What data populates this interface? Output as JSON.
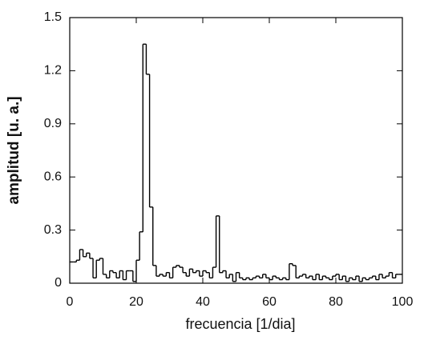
{
  "chart_data": {
    "type": "line",
    "drawstyle": "steps-post",
    "color": "#000000",
    "xlabel": "frecuencia  [1/dia]",
    "ylabel": "amplitud [u. a.]",
    "x": [
      0,
      1,
      2,
      3,
      4,
      5,
      6,
      7,
      8,
      9,
      10,
      11,
      12,
      13,
      14,
      15,
      16,
      17,
      18,
      19,
      20,
      21,
      22,
      23,
      24,
      25,
      26,
      27,
      28,
      29,
      30,
      31,
      32,
      33,
      34,
      35,
      36,
      37,
      38,
      39,
      40,
      41,
      42,
      43,
      44,
      45,
      46,
      47,
      48,
      49,
      50,
      51,
      52,
      53,
      54,
      55,
      56,
      57,
      58,
      59,
      60,
      61,
      62,
      63,
      64,
      65,
      66,
      67,
      68,
      69,
      70,
      71,
      72,
      73,
      74,
      75,
      76,
      77,
      78,
      79,
      80,
      81,
      82,
      83,
      84,
      85,
      86,
      87,
      88,
      89,
      90,
      91,
      92,
      93,
      94,
      95,
      96,
      97,
      98,
      99
    ],
    "values": [
      0.12,
      0.12,
      0.13,
      0.19,
      0.15,
      0.17,
      0.14,
      0.03,
      0.13,
      0.14,
      0.05,
      0.03,
      0.07,
      0.06,
      0.03,
      0.07,
      0.02,
      0.07,
      0.07,
      0.01,
      0.13,
      0.29,
      1.35,
      1.18,
      0.43,
      0.1,
      0.04,
      0.05,
      0.04,
      0.06,
      0.03,
      0.09,
      0.1,
      0.09,
      0.06,
      0.04,
      0.08,
      0.06,
      0.07,
      0.04,
      0.07,
      0.06,
      0.03,
      0.09,
      0.38,
      0.06,
      0.07,
      0.03,
      0.05,
      0.01,
      0.06,
      0.03,
      0.02,
      0.03,
      0.02,
      0.03,
      0.04,
      0.03,
      0.05,
      0.03,
      0.02,
      0.04,
      0.03,
      0.02,
      0.03,
      0.02,
      0.11,
      0.1,
      0.03,
      0.04,
      0.05,
      0.03,
      0.04,
      0.02,
      0.05,
      0.02,
      0.04,
      0.03,
      0.02,
      0.04,
      0.05,
      0.02,
      0.04,
      0.01,
      0.03,
      0.02,
      0.04,
      0.01,
      0.03,
      0.02,
      0.03,
      0.04,
      0.02,
      0.05,
      0.03,
      0.04,
      0.06,
      0.03,
      0.05,
      0.05
    ],
    "xlim": [
      0,
      100
    ],
    "xticks": [
      0,
      20,
      40,
      60,
      80,
      100
    ],
    "ylim": [
      0,
      1.5
    ],
    "yticks": [
      0,
      0.3,
      0.6,
      0.9,
      1.2,
      1.5
    ]
  }
}
